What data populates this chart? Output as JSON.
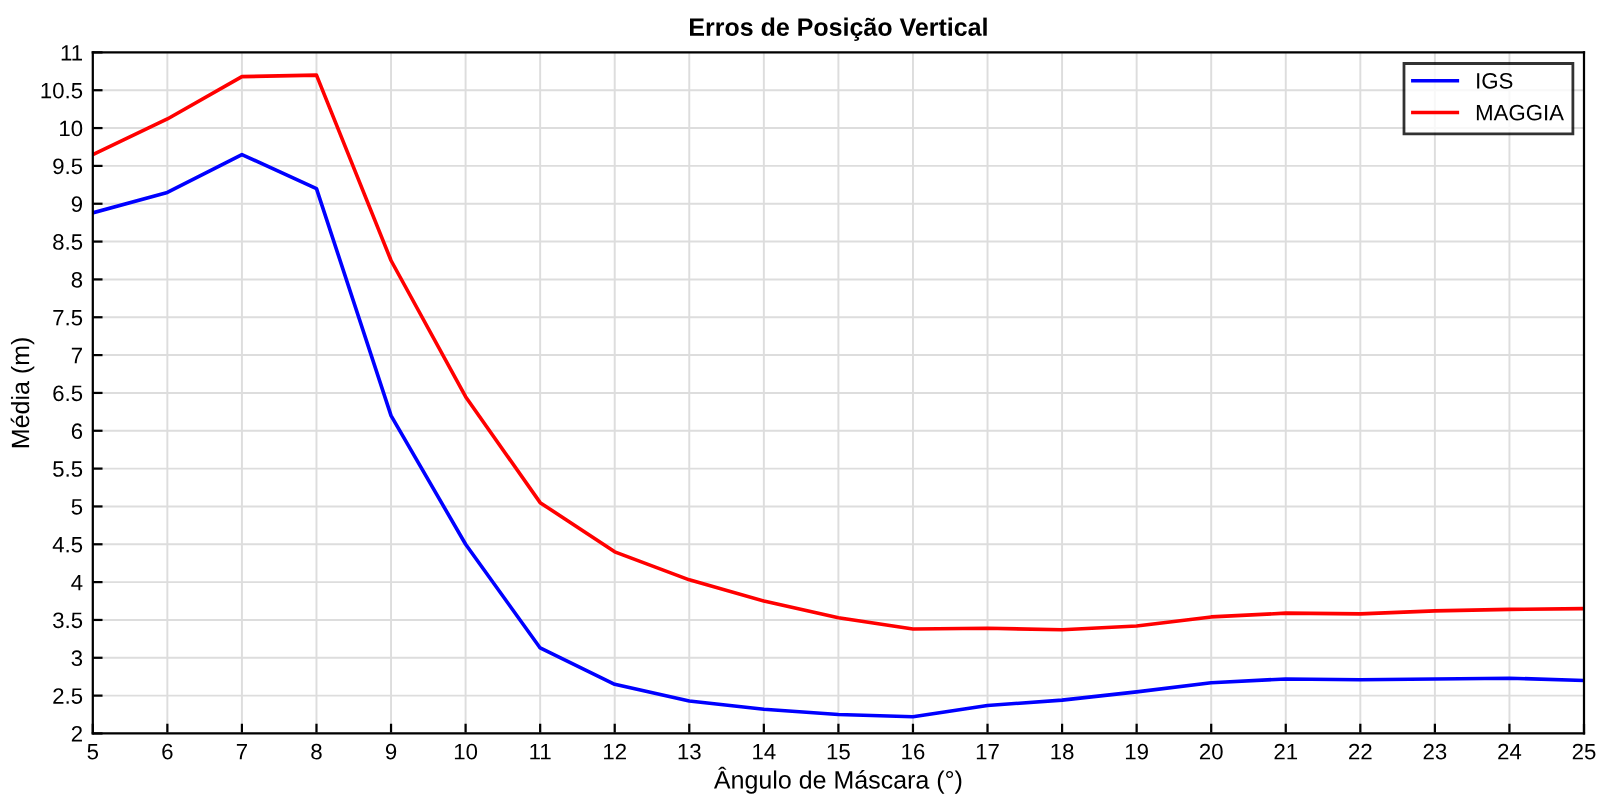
{
  "chart_data": {
    "type": "line",
    "title": "Erros de Posição Vertical",
    "xlabel": "Ângulo de Máscara (°)",
    "ylabel": "Média (m)",
    "x": [
      5,
      6,
      7,
      8,
      9,
      10,
      11,
      12,
      13,
      14,
      15,
      16,
      17,
      18,
      19,
      20,
      21,
      22,
      23,
      24,
      25
    ],
    "series": [
      {
        "name": "IGS",
        "color": "#0000ff",
        "values": [
          8.88,
          9.15,
          9.65,
          9.2,
          6.2,
          4.5,
          3.13,
          2.65,
          2.43,
          2.32,
          2.25,
          2.22,
          2.37,
          2.44,
          2.55,
          2.67,
          2.72,
          2.71,
          2.72,
          2.73,
          2.7
        ]
      },
      {
        "name": "MAGGIA",
        "color": "#ff0000",
        "values": [
          9.65,
          10.12,
          10.68,
          10.7,
          8.25,
          6.45,
          5.05,
          4.4,
          4.03,
          3.75,
          3.53,
          3.38,
          3.39,
          3.37,
          3.42,
          3.54,
          3.59,
          3.58,
          3.62,
          3.64,
          3.65
        ]
      }
    ],
    "xlim": [
      5,
      25
    ],
    "xticks": [
      5,
      6,
      7,
      8,
      9,
      10,
      11,
      12,
      13,
      14,
      15,
      16,
      17,
      18,
      19,
      20,
      21,
      22,
      23,
      24,
      25
    ],
    "ylim": [
      2,
      11
    ],
    "yticks": [
      2,
      2.5,
      3,
      3.5,
      4,
      4.5,
      5,
      5.5,
      6,
      6.5,
      7,
      7.5,
      8,
      8.5,
      9,
      9.5,
      10,
      10.5,
      11
    ],
    "grid": true,
    "legend": "top right",
    "line_style": "solid",
    "marker": "none"
  }
}
